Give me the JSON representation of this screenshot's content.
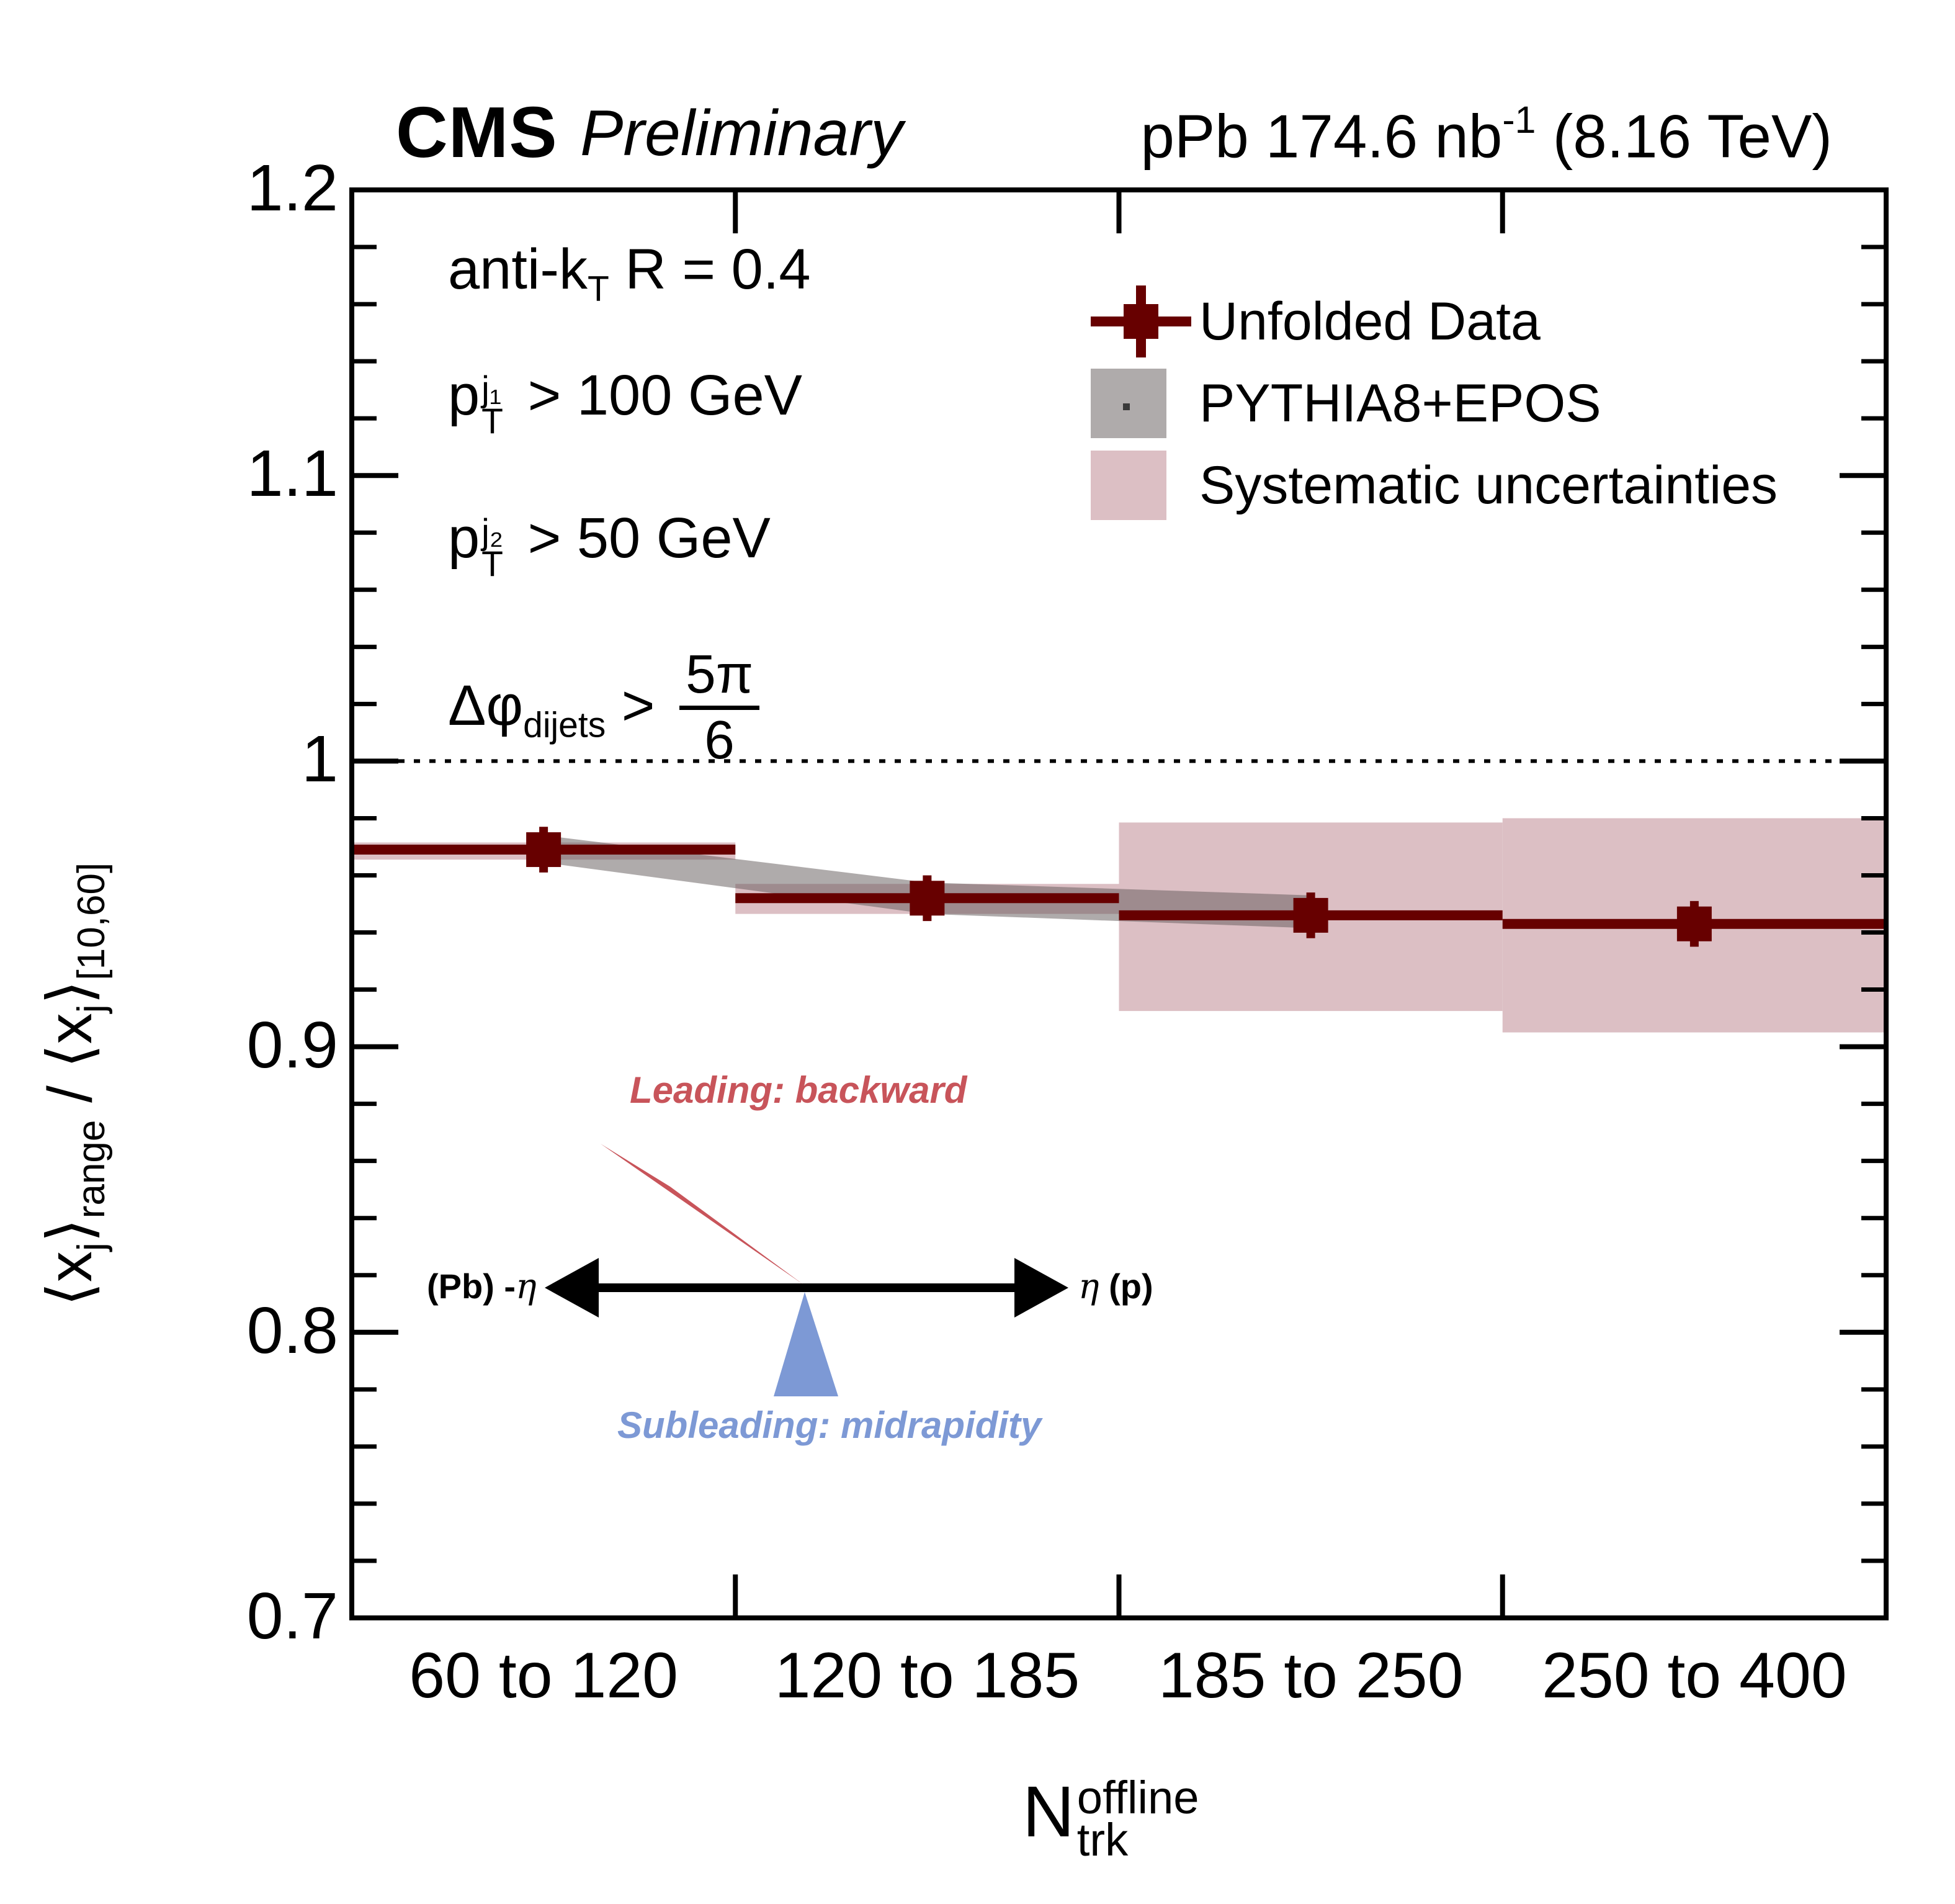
{
  "header": {
    "experiment": "CMS",
    "label": "Preliminary",
    "lumi_prefix": "pPb 174.6 nb",
    "lumi_sup": "-1",
    "lumi_suffix": " (8.16 TeV)"
  },
  "y_axis": {
    "title": {
      "lx": "⟨x",
      "j1": "j",
      "rb1": "⟩",
      "sub1": "range",
      "slash": " / ",
      "lx2": "⟨x",
      "j2": "j",
      "rb2": "⟩",
      "sub2": "[10,60]"
    },
    "ticks": [
      {
        "label": "1.2",
        "value": 1.2
      },
      {
        "label": "1.1",
        "value": 1.1
      },
      {
        "label": "1",
        "value": 1.0
      },
      {
        "label": "0.9",
        "value": 0.9
      },
      {
        "label": "0.8",
        "value": 0.8
      },
      {
        "label": "0.7",
        "value": 0.7
      }
    ]
  },
  "x_axis": {
    "title": {
      "base": "N",
      "sup": "offline",
      "sub": "trk"
    }
  },
  "annotations": {
    "jet_algo": {
      "base": "anti-k",
      "sub": "T",
      "rest": " R = 0.4"
    },
    "pt1": {
      "base": "p",
      "sup": "j₁",
      "sub": "T",
      "rest": " > 100 GeV"
    },
    "pt2": {
      "base": "p",
      "sup": "j₂",
      "sub": "T",
      "rest": " > 50 GeV"
    },
    "dphi": {
      "base": "Δφ",
      "sub": "dijets",
      "gt": " > ",
      "num": "5π",
      "den": "6"
    }
  },
  "legend": {
    "items": [
      {
        "label": "Unfolded Data"
      },
      {
        "label": "PYTHIA8+EPOS"
      },
      {
        "label": "Systematic uncertainties"
      }
    ]
  },
  "inset": {
    "leading": "Leading: backward",
    "subleading": "Subleading: midrapidity",
    "left_label": "(Pb) -",
    "left_eta": "η",
    "right_eta": "η",
    "right_label": " (p)"
  },
  "colors": {
    "dark_red": "#670000",
    "syst_pink": "#dcbfc4",
    "mc_gray": "#5f5858",
    "mc_gray_alpha": 0.5,
    "cone_red": "#c8545a",
    "cone_blue": "#7d99d5",
    "axis_black": "#000000"
  },
  "chart_data": {
    "type": "scatter",
    "title": "CMS Preliminary, pPb 174.6 nb-1 (8.16 TeV)",
    "xlabel": "N_trk_offline",
    "ylabel": "<x_j>_range / <x_j>_[10,60]",
    "categories": [
      "60 to 120",
      "120 to 185",
      "185 to 250",
      "250 to 400"
    ],
    "ylim": [
      0.7,
      1.2
    ],
    "ytick_major": [
      0.7,
      0.8,
      0.9,
      1.0,
      1.1,
      1.2
    ],
    "ytick_minor_step": 0.02,
    "reference_line_y": 1.0,
    "grid": false,
    "legend_position": "top-right",
    "series": [
      {
        "name": "Unfolded Data",
        "type": "points",
        "marker": "square",
        "values": [
          0.969,
          0.952,
          0.946,
          0.943
        ],
        "stat_err": [
          0.008,
          0.008,
          0.008,
          0.008
        ],
        "x_err": "full_bin_width"
      },
      {
        "name": "PYTHIA8+EPOS",
        "type": "band",
        "bins": [
          0,
          1,
          2
        ],
        "top": [
          0.974,
          0.9575,
          0.953
        ],
        "bottom": [
          0.9645,
          0.9465,
          0.9415
        ]
      },
      {
        "name": "Systematic uncertainties",
        "type": "band_per_bin",
        "low": [
          0.9655,
          0.9465,
          0.9125,
          0.905
        ],
        "high": [
          0.9715,
          0.957,
          0.9785,
          0.98
        ]
      }
    ]
  }
}
